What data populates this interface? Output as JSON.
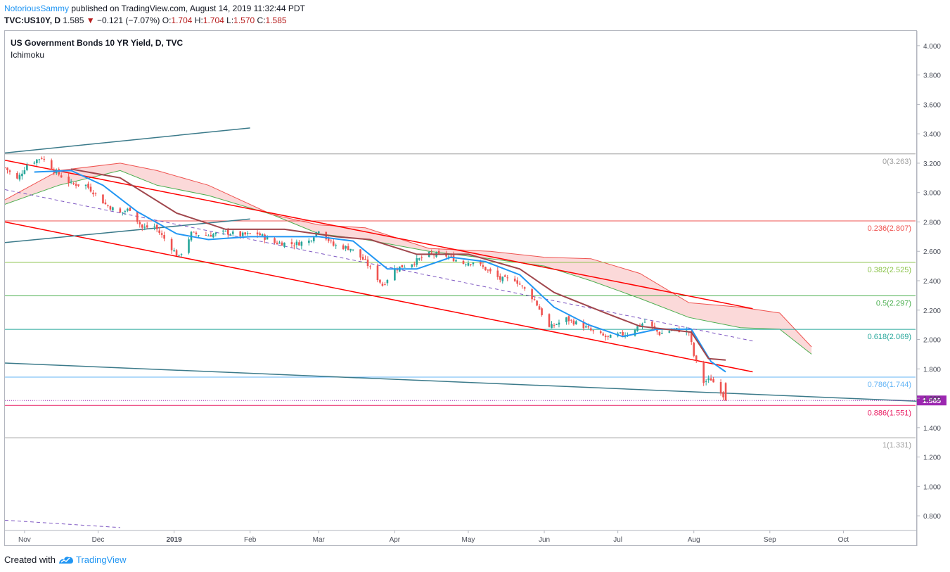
{
  "header": {
    "author": "NotoriousSammy",
    "published": "published on TradingView.com, August 14, 2019 11:32:44 PDT",
    "symbol": "TVC:US10Y, D",
    "last": "1.585",
    "arrow": "▼",
    "change": "−0.121 (−7.07%)",
    "o_label": "O:",
    "o_value": "1.704",
    "h_label": "H:",
    "h_value": "1.704",
    "l_label": "L:",
    "l_value": "1.570",
    "c_label": "C:",
    "c_value": "1.585"
  },
  "pane": {
    "title": "US Government Bonds 10 YR Yield, D, TVC",
    "indicator": "Ichimoku"
  },
  "footer": {
    "created_with": "Created with",
    "brand": "TradingView"
  },
  "colors": {
    "up": "#26a69a",
    "down": "#ef5350",
    "price_tag": "#9c27b0",
    "tenkan": "#2196f3",
    "kijun": "#a0464c",
    "channel": "#ff0000",
    "trendline": "#3b7a8a"
  },
  "chart_data": {
    "type": "candlestick",
    "symbol": "TVC:US10Y",
    "timeframe": "D",
    "x_range": [
      "2018-10-24",
      "2019-10-31"
    ],
    "ylim": [
      0.7,
      4.1
    ],
    "y_ticks": [
      "4.000",
      "3.800",
      "3.600",
      "3.400",
      "3.200",
      "3.000",
      "2.800",
      "2.600",
      "2.400",
      "2.200",
      "2.000",
      "1.800",
      "1.600",
      "1.400",
      "1.200",
      "1.000",
      "0.800"
    ],
    "x_ticks": [
      {
        "label": "Nov",
        "date": "2018-11-01"
      },
      {
        "label": "Dec",
        "date": "2018-12-01"
      },
      {
        "label": "2019",
        "date": "2019-01-01"
      },
      {
        "label": "Feb",
        "date": "2019-02-01"
      },
      {
        "label": "Mar",
        "date": "2019-03-01"
      },
      {
        "label": "Apr",
        "date": "2019-04-01"
      },
      {
        "label": "May",
        "date": "2019-05-01"
      },
      {
        "label": "Jun",
        "date": "2019-06-01"
      },
      {
        "label": "Jul",
        "date": "2019-07-01"
      },
      {
        "label": "Aug",
        "date": "2019-08-01"
      },
      {
        "label": "Sep",
        "date": "2019-09-01"
      },
      {
        "label": "Oct",
        "date": "2019-10-01"
      }
    ],
    "last_price": 1.585,
    "last_price_label": "1.585",
    "fib_levels": [
      {
        "label": "0(3.263)",
        "value": 3.263,
        "color": "#9e9e9e"
      },
      {
        "label": "0.236(2.807)",
        "value": 2.807,
        "color": "#ef5350"
      },
      {
        "label": "0.382(2.525)",
        "value": 2.525,
        "color": "#8bc34a"
      },
      {
        "label": "0.5(2.297)",
        "value": 2.297,
        "color": "#4caf50"
      },
      {
        "label": "0.618(2.069)",
        "value": 2.069,
        "color": "#26a69a"
      },
      {
        "label": "0.786(1.744)",
        "value": 1.744,
        "color": "#64b5f6"
      },
      {
        "label": "0.886(1.551)",
        "value": 1.551,
        "color": "#e91e63"
      },
      {
        "label": "1(1.331)",
        "value": 1.331,
        "color": "#9e9e9e"
      }
    ],
    "price_path": [
      [
        "2018-10-24",
        3.17
      ],
      [
        "2018-10-29",
        3.09
      ],
      [
        "2018-11-02",
        3.19
      ],
      [
        "2018-11-08",
        3.24
      ],
      [
        "2018-11-13",
        3.15
      ],
      [
        "2018-11-20",
        3.06
      ],
      [
        "2018-11-26",
        3.05
      ],
      [
        "2018-11-30",
        2.99
      ],
      [
        "2018-12-04",
        2.92
      ],
      [
        "2018-12-10",
        2.86
      ],
      [
        "2018-12-14",
        2.89
      ],
      [
        "2018-12-19",
        2.76
      ],
      [
        "2018-12-24",
        2.77
      ],
      [
        "2019-01-03",
        2.56
      ],
      [
        "2019-01-08",
        2.72
      ],
      [
        "2019-01-15",
        2.71
      ],
      [
        "2019-01-22",
        2.73
      ],
      [
        "2019-01-28",
        2.71
      ],
      [
        "2019-02-04",
        2.72
      ],
      [
        "2019-02-11",
        2.66
      ],
      [
        "2019-02-19",
        2.65
      ],
      [
        "2019-02-25",
        2.67
      ],
      [
        "2019-03-01",
        2.75
      ],
      [
        "2019-03-07",
        2.64
      ],
      [
        "2019-03-14",
        2.62
      ],
      [
        "2019-03-20",
        2.53
      ],
      [
        "2019-03-27",
        2.37
      ],
      [
        "2019-04-01",
        2.48
      ],
      [
        "2019-04-08",
        2.52
      ],
      [
        "2019-04-15",
        2.58
      ],
      [
        "2019-04-22",
        2.57
      ],
      [
        "2019-04-29",
        2.52
      ],
      [
        "2019-05-03",
        2.53
      ],
      [
        "2019-05-08",
        2.48
      ],
      [
        "2019-05-14",
        2.41
      ],
      [
        "2019-05-20",
        2.41
      ],
      [
        "2019-05-28",
        2.27
      ],
      [
        "2019-06-03",
        2.08
      ],
      [
        "2019-06-10",
        2.14
      ],
      [
        "2019-06-17",
        2.09
      ],
      [
        "2019-06-21",
        2.05
      ],
      [
        "2019-06-27",
        2.01
      ],
      [
        "2019-07-01",
        2.03
      ],
      [
        "2019-07-05",
        2.04
      ],
      [
        "2019-07-12",
        2.12
      ],
      [
        "2019-07-18",
        2.04
      ],
      [
        "2019-07-24",
        2.07
      ],
      [
        "2019-07-30",
        2.05
      ],
      [
        "2019-08-01",
        1.89
      ],
      [
        "2019-08-05",
        1.71
      ],
      [
        "2019-08-08",
        1.73
      ],
      [
        "2019-08-12",
        1.65
      ],
      [
        "2019-08-14",
        1.585
      ]
    ],
    "tenkan_path": [
      [
        "2018-11-05",
        3.14
      ],
      [
        "2018-11-20",
        3.15
      ],
      [
        "2018-12-03",
        3.05
      ],
      [
        "2018-12-17",
        2.87
      ],
      [
        "2019-01-02",
        2.72
      ],
      [
        "2019-01-15",
        2.68
      ],
      [
        "2019-02-01",
        2.7
      ],
      [
        "2019-02-15",
        2.7
      ],
      [
        "2019-03-01",
        2.7
      ],
      [
        "2019-03-15",
        2.67
      ],
      [
        "2019-03-29",
        2.48
      ],
      [
        "2019-04-10",
        2.48
      ],
      [
        "2019-04-24",
        2.56
      ],
      [
        "2019-05-08",
        2.53
      ],
      [
        "2019-05-22",
        2.44
      ],
      [
        "2019-06-05",
        2.22
      ],
      [
        "2019-06-19",
        2.1
      ],
      [
        "2019-07-03",
        2.02
      ],
      [
        "2019-07-17",
        2.07
      ],
      [
        "2019-07-31",
        2.07
      ],
      [
        "2019-08-08",
        1.85
      ],
      [
        "2019-08-14",
        1.78
      ]
    ],
    "kijun_path": [
      [
        "2018-11-20",
        3.16
      ],
      [
        "2018-12-10",
        3.1
      ],
      [
        "2019-01-02",
        2.86
      ],
      [
        "2019-01-22",
        2.75
      ],
      [
        "2019-02-15",
        2.75
      ],
      [
        "2019-03-08",
        2.7
      ],
      [
        "2019-03-22",
        2.68
      ],
      [
        "2019-04-10",
        2.58
      ],
      [
        "2019-05-01",
        2.58
      ],
      [
        "2019-05-22",
        2.48
      ],
      [
        "2019-06-05",
        2.32
      ],
      [
        "2019-06-26",
        2.18
      ],
      [
        "2019-07-10",
        2.09
      ],
      [
        "2019-07-31",
        2.05
      ],
      [
        "2019-08-07",
        1.87
      ],
      [
        "2019-08-14",
        1.86
      ]
    ],
    "cloud_span_a": [
      [
        "2018-10-24",
        2.92
      ],
      [
        "2018-11-15",
        3.05
      ],
      [
        "2018-12-10",
        3.15
      ],
      [
        "2018-12-25",
        3.05
      ],
      [
        "2019-01-15",
        2.98
      ],
      [
        "2019-02-10",
        2.85
      ],
      [
        "2019-03-01",
        2.72
      ],
      [
        "2019-03-20",
        2.68
      ],
      [
        "2019-04-15",
        2.6
      ],
      [
        "2019-05-10",
        2.55
      ],
      [
        "2019-06-01",
        2.5
      ],
      [
        "2019-06-20",
        2.4
      ],
      [
        "2019-07-10",
        2.28
      ],
      [
        "2019-07-30",
        2.15
      ],
      [
        "2019-08-20",
        2.08
      ],
      [
        "2019-09-05",
        2.07
      ],
      [
        "2019-09-18",
        1.9
      ]
    ],
    "cloud_span_b": [
      [
        "2018-10-24",
        2.95
      ],
      [
        "2018-11-15",
        3.15
      ],
      [
        "2018-12-10",
        3.2
      ],
      [
        "2018-12-25",
        3.15
      ],
      [
        "2019-01-15",
        3.05
      ],
      [
        "2019-02-10",
        2.85
      ],
      [
        "2019-03-01",
        2.78
      ],
      [
        "2019-03-20",
        2.76
      ],
      [
        "2019-04-15",
        2.62
      ],
      [
        "2019-05-10",
        2.6
      ],
      [
        "2019-06-01",
        2.56
      ],
      [
        "2019-06-20",
        2.55
      ],
      [
        "2019-07-10",
        2.45
      ],
      [
        "2019-07-30",
        2.25
      ],
      [
        "2019-08-20",
        2.22
      ],
      [
        "2019-09-05",
        2.18
      ],
      [
        "2019-09-18",
        1.95
      ]
    ],
    "trendlines": [
      {
        "from": [
          "2018-10-24",
          2.8
        ],
        "to": [
          "2019-08-25",
          1.78
        ],
        "color": "channel"
      },
      {
        "from": [
          "2018-10-24",
          3.22
        ],
        "to": [
          "2019-08-25",
          2.21
        ],
        "color": "channel"
      },
      {
        "from": [
          "2018-10-24",
          2.66
        ],
        "to": [
          "2019-02-01",
          2.82
        ],
        "color": "trendline"
      },
      {
        "from": [
          "2018-10-24",
          3.27
        ],
        "to": [
          "2019-02-01",
          3.44
        ],
        "color": "trendline"
      },
      {
        "from": [
          "2018-10-24",
          1.84
        ],
        "to": [
          "2019-10-31",
          1.58
        ],
        "color": "trendline"
      },
      {
        "from": [
          "2018-10-24",
          3.02
        ],
        "to": [
          "2019-08-25",
          1.99
        ],
        "color": "dashed"
      },
      {
        "from": [
          "2018-10-24",
          0.77
        ],
        "to": [
          "2018-12-10",
          0.72
        ],
        "color": "dashed"
      }
    ]
  }
}
